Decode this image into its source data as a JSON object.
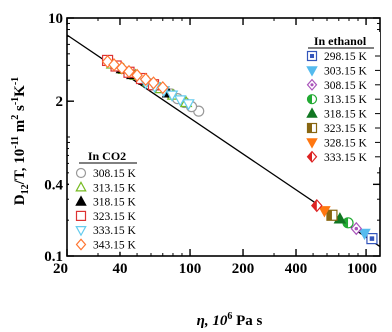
{
  "chart_data": {
    "type": "scatter",
    "title": "",
    "xlabel": "η, 10^6 Pa s",
    "xlabel_parts": {
      "main": "η, 10",
      "sup": "6",
      "rest": " Pa s"
    },
    "ylabel": "D12/T, 10^-11 m^2 s^-1 K^-1",
    "ylabel_parts": {
      "d": "D",
      "sub": "12",
      "mid": "/T, 10",
      "sup1": "-11",
      "m": " m",
      "sup2": "2",
      "s": " s",
      "sup3": "-1",
      "k": "K",
      "sup4": "-1"
    },
    "x_scale": "log",
    "y_scale": "log",
    "xlim": [
      20,
      1200
    ],
    "ylim": [
      0.1,
      10
    ],
    "x_ticks": [
      20,
      40,
      100,
      200,
      400,
      1000
    ],
    "x_tick_labels": [
      "20",
      "40",
      "100",
      "200",
      "400",
      "1000"
    ],
    "y_ticks": [
      0.1,
      0.4,
      2,
      10
    ],
    "y_tick_labels": [
      "0.1",
      "0.4",
      "2",
      "10"
    ],
    "grid": false,
    "fit_line": {
      "x": [
        20,
        1200
      ],
      "y": [
        7.2,
        0.12
      ]
    },
    "legends": [
      {
        "title": "In ethanol",
        "placement": "top-right",
        "entries": [
          "298.15 K",
          "303.15 K",
          "308.15 K",
          "313.15 K",
          "318.15 K",
          "323.15 K",
          "328.15 K",
          "333.15 K"
        ]
      },
      {
        "title": "In CO2",
        "placement": "bottom-left",
        "entries": [
          "308.15 K",
          "313.15 K",
          "318.15 K",
          "323.15 K",
          "333.15 K",
          "343.15 K"
        ]
      }
    ],
    "series": [
      {
        "name": "298.15 K",
        "group": "ethanol",
        "marker": "square-dot",
        "color": "#3355bb",
        "filled": false,
        "points": [
          [
            1080,
            0.14
          ]
        ]
      },
      {
        "name": "303.15 K",
        "group": "ethanol",
        "marker": "triangle-down",
        "color": "#55bbee",
        "filled": true,
        "points": [
          [
            980,
            0.155
          ]
        ]
      },
      {
        "name": "308.15 K",
        "group": "ethanol",
        "marker": "diamond-dot",
        "color": "#aa55bb",
        "filled": false,
        "points": [
          [
            880,
            0.17
          ]
        ]
      },
      {
        "name": "313.15 K",
        "group": "ethanol",
        "marker": "half-circle",
        "color": "#22aa33",
        "filled": true,
        "points": [
          [
            790,
            0.19
          ]
        ]
      },
      {
        "name": "318.15 K",
        "group": "ethanol",
        "marker": "triangle-up",
        "color": "#117722",
        "filled": true,
        "points": [
          [
            710,
            0.205
          ]
        ]
      },
      {
        "name": "323.15 K",
        "group": "ethanol",
        "marker": "half-square",
        "color": "#886611",
        "filled": true,
        "points": [
          [
            640,
            0.22
          ]
        ]
      },
      {
        "name": "328.15 K",
        "group": "ethanol",
        "marker": "triangle-down",
        "color": "#ff7711",
        "filled": true,
        "points": [
          [
            580,
            0.24
          ]
        ]
      },
      {
        "name": "333.15 K",
        "group": "ethanol",
        "marker": "diamond-half",
        "color": "#dd2222",
        "filled": true,
        "points": [
          [
            525,
            0.265
          ]
        ]
      },
      {
        "name": "308.15 K",
        "group": "co2",
        "marker": "circle",
        "color": "#999999",
        "filled": false,
        "points": [
          [
            112,
            1.65
          ],
          [
            102,
            1.8
          ],
          [
            93,
            1.95
          ],
          [
            85,
            2.1
          ],
          [
            78,
            2.3
          ]
        ]
      },
      {
        "name": "313.15 K",
        "group": "co2",
        "marker": "triangle-up",
        "color": "#77bb22",
        "filled": false,
        "points": [
          [
            95,
            1.95
          ],
          [
            80,
            2.25
          ],
          [
            68,
            2.55
          ],
          [
            58,
            2.9
          ],
          [
            49,
            3.3
          ],
          [
            42,
            3.7
          ],
          [
            36,
            4.1
          ]
        ]
      },
      {
        "name": "318.15 K",
        "group": "co2",
        "marker": "triangle-up",
        "color": "#000000",
        "filled": true,
        "points": [
          [
            75,
            2.35
          ],
          [
            64,
            2.7
          ],
          [
            55,
            3.0
          ],
          [
            47,
            3.35
          ],
          [
            41,
            3.75
          ]
        ]
      },
      {
        "name": "323.15 K",
        "group": "co2",
        "marker": "square",
        "color": "#dd3333",
        "filled": false,
        "points": [
          [
            62,
            2.75
          ],
          [
            53,
            3.1
          ],
          [
            45,
            3.5
          ],
          [
            38,
            3.95
          ],
          [
            34,
            4.4
          ]
        ]
      },
      {
        "name": "333.15 K",
        "group": "co2",
        "marker": "triangle-down",
        "color": "#66ccee",
        "filled": false,
        "points": [
          [
            98,
            1.9
          ],
          [
            88,
            2.05
          ],
          [
            79,
            2.25
          ],
          [
            71,
            2.45
          ],
          [
            63,
            2.65
          ],
          [
            56,
            2.85
          ]
        ]
      },
      {
        "name": "343.15 K",
        "group": "co2",
        "marker": "diamond",
        "color": "#ff7733",
        "filled": false,
        "points": [
          [
            34,
            4.3
          ],
          [
            37,
            4.05
          ],
          [
            41,
            3.8
          ],
          [
            45,
            3.55
          ],
          [
            50,
            3.3
          ],
          [
            56,
            3.05
          ],
          [
            62,
            2.85
          ],
          [
            70,
            2.6
          ]
        ]
      }
    ]
  }
}
